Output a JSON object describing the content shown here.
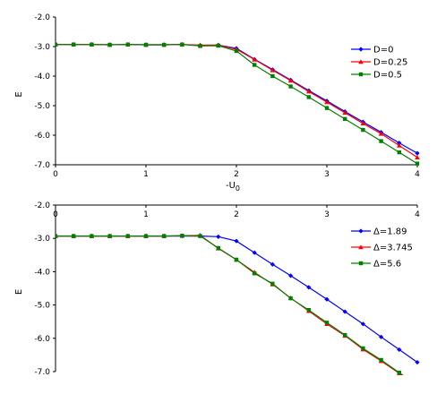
{
  "chart_data": [
    {
      "type": "line",
      "xlabel": "-U",
      "xlabel_sub": "0",
      "ylabel": "E",
      "xlim": [
        0,
        4
      ],
      "ylim": [
        -7.0,
        -2.0
      ],
      "x_ticks": [
        "0",
        "1",
        "2",
        "3",
        "4"
      ],
      "y_ticks": [
        "-2.0",
        "-3.0",
        "-4.0",
        "-5.0",
        "-6.0",
        "-7.0"
      ],
      "x_axis_position": "bottom",
      "grid": false,
      "legend_position": "right",
      "x": [
        0,
        0.2,
        0.4,
        0.6,
        0.8,
        1.0,
        1.2,
        1.4,
        1.6,
        1.8,
        2.0,
        2.2,
        2.4,
        2.6,
        2.8,
        3.0,
        3.2,
        3.4,
        3.6,
        3.8,
        4.0
      ],
      "series": [
        {
          "name": "D=0",
          "color": "#0000ff",
          "marker": "diamond",
          "values": [
            -2.93,
            -2.93,
            -2.93,
            -2.94,
            -2.93,
            -2.94,
            -2.94,
            -2.93,
            -2.96,
            -2.95,
            -3.06,
            -3.43,
            -3.78,
            -4.13,
            -4.49,
            -4.84,
            -5.2,
            -5.55,
            -5.9,
            -6.26,
            -6.61
          ]
        },
        {
          "name": "D=0.25",
          "color": "#ff0000",
          "marker": "triangle",
          "values": [
            -2.93,
            -2.93,
            -2.93,
            -2.94,
            -2.93,
            -2.94,
            -2.94,
            -2.93,
            -2.95,
            -2.95,
            -3.09,
            -3.44,
            -3.8,
            -4.15,
            -4.52,
            -4.88,
            -5.24,
            -5.6,
            -5.95,
            -6.35,
            -6.75
          ]
        },
        {
          "name": "D=0.5",
          "color": "#008000",
          "marker": "square",
          "values": [
            -2.93,
            -2.93,
            -2.93,
            -2.94,
            -2.93,
            -2.94,
            -2.94,
            -2.93,
            -2.98,
            -2.97,
            -3.15,
            -3.62,
            -4.0,
            -4.35,
            -4.71,
            -5.08,
            -5.45,
            -5.82,
            -6.2,
            -6.58,
            -6.96
          ]
        }
      ]
    },
    {
      "type": "line",
      "ylabel": "E",
      "xlim": [
        0,
        4
      ],
      "ylim": [
        -7.0,
        -2.0
      ],
      "x_ticks": [
        "0",
        "1",
        "2",
        "3",
        "4"
      ],
      "y_ticks": [
        "-2.0",
        "-3.0",
        "-4.0",
        "-5.0",
        "-6.0",
        "-7.0"
      ],
      "x_axis_position": "top",
      "grid": false,
      "legend_position": "right",
      "x": [
        0,
        0.2,
        0.4,
        0.6,
        0.8,
        1.0,
        1.2,
        1.4,
        1.6,
        1.8,
        2.0,
        2.2,
        2.4,
        2.6,
        2.8,
        3.0,
        3.2,
        3.4,
        3.6,
        3.8,
        4.0
      ],
      "series": [
        {
          "name": "Δ=1.89",
          "color": "#0000ff",
          "marker": "diamond",
          "values": [
            -2.93,
            -2.93,
            -2.93,
            -2.93,
            -2.93,
            -2.93,
            -2.93,
            -2.93,
            -2.93,
            -2.95,
            -3.08,
            -3.43,
            -3.78,
            -4.12,
            -4.47,
            -4.83,
            -5.2,
            -5.57,
            -5.96,
            -6.34,
            -6.72
          ]
        },
        {
          "name": "Δ=3.745",
          "color": "#ff0000",
          "marker": "triangle",
          "values": [
            -2.93,
            -2.93,
            -2.93,
            -2.93,
            -2.93,
            -2.93,
            -2.93,
            -2.92,
            -2.91,
            -3.3,
            -3.64,
            -4.02,
            -4.38,
            -4.79,
            -5.18,
            -5.57,
            -5.92,
            -6.33,
            -6.68,
            -7.05,
            -7.45
          ]
        },
        {
          "name": "Δ=5.6",
          "color": "#008000",
          "marker": "square",
          "values": [
            -2.93,
            -2.93,
            -2.93,
            -2.93,
            -2.93,
            -2.93,
            -2.93,
            -2.92,
            -2.93,
            -3.29,
            -3.64,
            -4.05,
            -4.36,
            -4.8,
            -5.15,
            -5.53,
            -5.9,
            -6.3,
            -6.65,
            -7.03,
            -7.43
          ]
        }
      ]
    }
  ]
}
